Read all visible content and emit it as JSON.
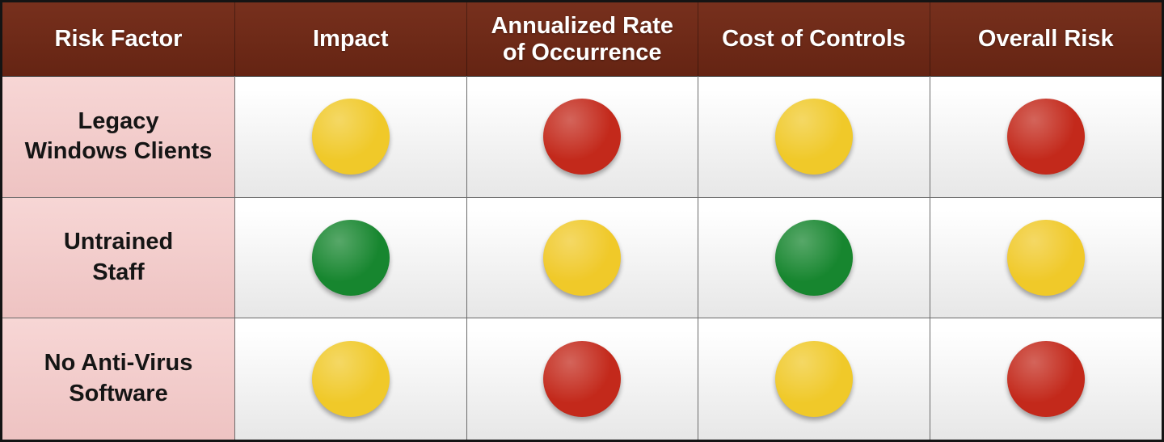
{
  "colors": {
    "header_bg": "#77301d",
    "header_bg_deep": "#652413",
    "header_text": "#ffffff",
    "row_label_bg_top": "#f7d6d5",
    "row_label_bg_bottom": "#eec3c2",
    "cell_bg_top": "#ffffff",
    "cell_bg_bottom": "#e7e7e7",
    "grid_line": "#6b6b6b",
    "outer_border": "#141414",
    "green": "#17862f",
    "yellow": "#f0c929",
    "red": "#c3291b"
  },
  "table": {
    "headers": [
      "Risk Factor",
      "Impact",
      "Annualized Rate\nof Occurrence",
      "Cost of Controls",
      "Overall Risk"
    ],
    "rows": [
      {
        "label": "Legacy\nWindows Clients",
        "values": [
          "yellow",
          "red",
          "yellow",
          "red"
        ]
      },
      {
        "label": "Untrained\nStaff",
        "values": [
          "green",
          "yellow",
          "green",
          "yellow"
        ]
      },
      {
        "label": "No Anti-Virus\nSoftware",
        "values": [
          "yellow",
          "red",
          "yellow",
          "red"
        ]
      }
    ]
  },
  "chart_data": {
    "type": "table",
    "title": "Risk factor traffic-light matrix",
    "columns": [
      "Risk Factor",
      "Impact",
      "Annualized Rate of Occurrence",
      "Cost of Controls",
      "Overall Risk"
    ],
    "rows": [
      [
        "Legacy Windows Clients",
        "yellow",
        "red",
        "yellow",
        "red"
      ],
      [
        "Untrained Staff",
        "green",
        "yellow",
        "green",
        "yellow"
      ],
      [
        "No Anti-Virus Software",
        "yellow",
        "red",
        "yellow",
        "red"
      ]
    ],
    "cell_encoding": "traffic-light status circle: green | yellow | red"
  }
}
